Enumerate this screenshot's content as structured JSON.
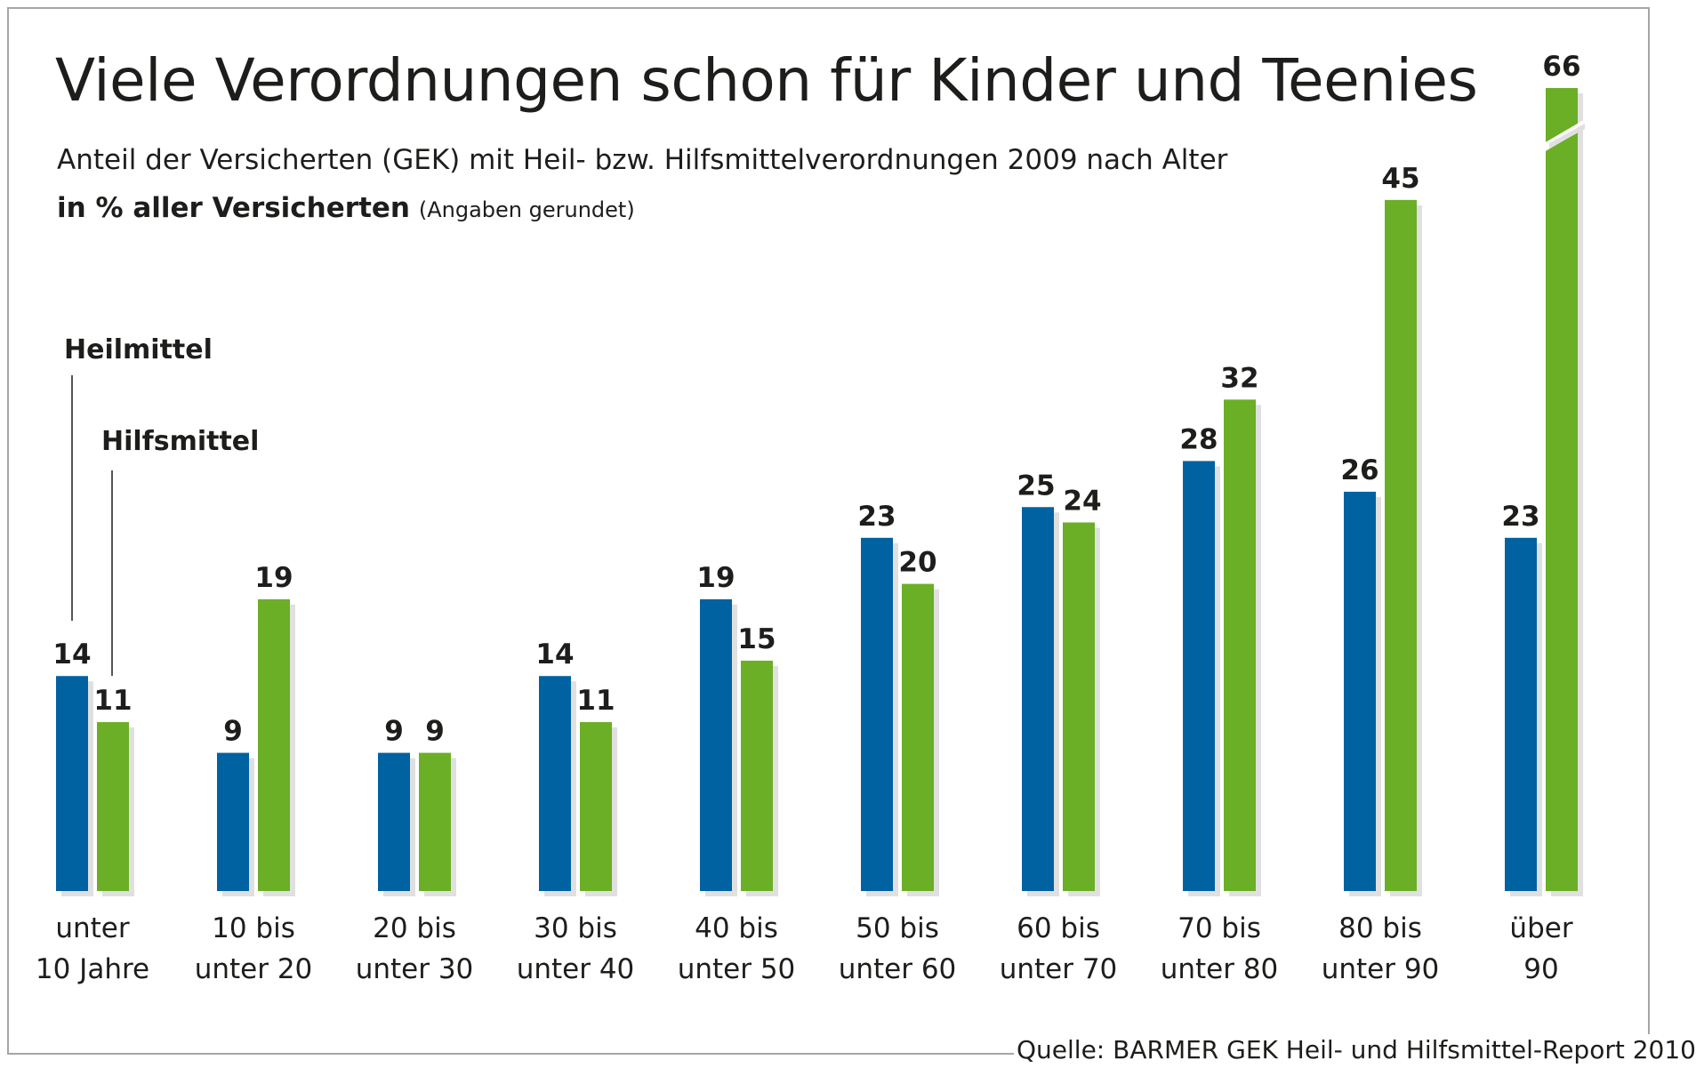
{
  "header": {
    "title": "Viele Verordnungen schon für Kinder und Teenies",
    "subtitle": "Anteil der Versicherten (GEK) mit Heil- bzw. Hilfsmittelverordnungen 2009 nach Alter",
    "unit_bold": "in % aller Versicherten",
    "unit_note": "(Angaben gerundet)"
  },
  "legend": {
    "heilmittel": "Heilmittel",
    "hilfsmittel": "Hilfsmittel"
  },
  "source": "Quelle: BARMER GEK Heil- und Hilfsmittel-Report 2010",
  "colors": {
    "heilmittel": "#0062a1",
    "hilfsmittel": "#6aaf25",
    "shadow": "#e0e0e0"
  },
  "chart_data": {
    "type": "bar",
    "title": "Viele Verordnungen schon für Kinder und Teenies",
    "subtitle": "Anteil der Versicherten (GEK) mit Heil- bzw. Hilfsmittelverordnungen 2009 nach Alter",
    "xlabel": "",
    "ylabel": "in % aller Versicherten",
    "ylim": [
      0,
      66
    ],
    "grid": false,
    "legend_position": "left",
    "categories": [
      [
        "unter",
        "10 Jahre"
      ],
      [
        "10 bis",
        "unter 20"
      ],
      [
        "20 bis",
        "unter 30"
      ],
      [
        "30 bis",
        "unter 40"
      ],
      [
        "40 bis",
        "unter 50"
      ],
      [
        "50 bis",
        "unter 60"
      ],
      [
        "60 bis",
        "unter 70"
      ],
      [
        "70 bis",
        "unter 80"
      ],
      [
        "80 bis",
        "unter 90"
      ],
      [
        "über",
        "90"
      ]
    ],
    "series": [
      {
        "name": "Heilmittel",
        "values": [
          14,
          9,
          9,
          14,
          19,
          23,
          25,
          28,
          26,
          23
        ]
      },
      {
        "name": "Hilfsmittel",
        "values": [
          11,
          19,
          9,
          11,
          15,
          20,
          24,
          32,
          45,
          66
        ]
      }
    ],
    "broken_bars": [
      {
        "series": "Hilfsmittel",
        "category_index": 9,
        "value": 66
      }
    ]
  }
}
